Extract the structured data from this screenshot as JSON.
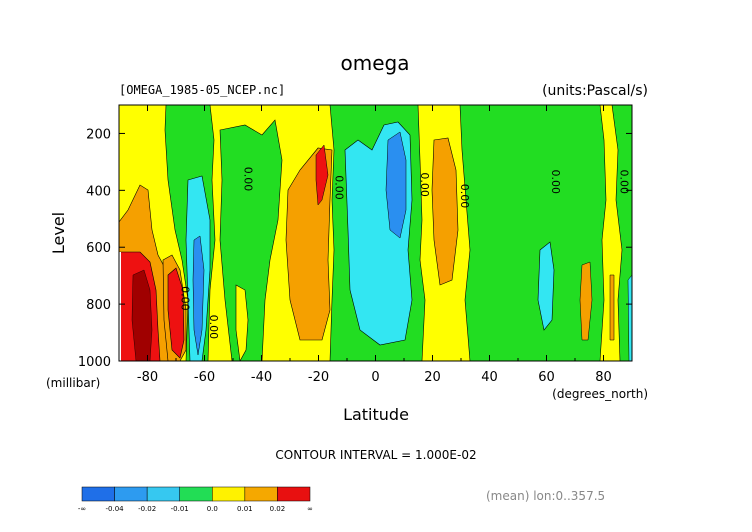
{
  "chart_data": {
    "type": "heatmap",
    "title": "omega",
    "file_label": "[OMEGA_1985-05_NCEP.nc]",
    "units_label": "(units:Pascal/s)",
    "xlabel": "Latitude",
    "x_units": "(degrees_north)",
    "ylabel": "Level",
    "y_units": "(millibar)",
    "xlim": [
      -90,
      90
    ],
    "ylim": [
      1000,
      100
    ],
    "x_ticks": [
      -80,
      -60,
      -40,
      -20,
      0,
      20,
      40,
      60,
      80
    ],
    "x_tick_labels": [
      "-80",
      "-60",
      "-40",
      "-20",
      "0",
      "20",
      "40",
      "60",
      "80"
    ],
    "y_ticks": [
      200,
      400,
      600,
      800,
      1000
    ],
    "y_tick_labels": [
      "200",
      "400",
      "600",
      "800",
      "1000"
    ],
    "contour_interval_text": "CONTOUR INTERVAL = 1.000E-02",
    "mean_text": "(mean) lon:0..357.5",
    "contour_labels": [
      {
        "text": "0.00",
        "lat": -68,
        "lev": 780
      },
      {
        "text": "0.00",
        "lat": -58,
        "lev": 880
      },
      {
        "text": "0.00",
        "lat": -46,
        "lev": 360
      },
      {
        "text": "0.00",
        "lat": -14,
        "lev": 390
      },
      {
        "text": "0.00",
        "lat": 16,
        "lev": 380
      },
      {
        "text": "0.00",
        "lat": 30,
        "lev": 420
      },
      {
        "text": "0.00",
        "lat": 62,
        "lev": 370
      },
      {
        "text": "0.00",
        "lat": 86,
        "lev": 370
      }
    ],
    "colorbar": {
      "colors": [
        "#1f6fe8",
        "#2d9bf0",
        "#36c8f0",
        "#22dd55",
        "#fff200",
        "#f5a800",
        "#e81010"
      ],
      "tick_labels": [
        "-∞",
        "-0.04",
        "-0.02",
        "-0.01",
        "0.0",
        "0.01",
        "0.02",
        "∞"
      ]
    },
    "colors": {
      "red": "#ee1111",
      "orange": "#f5a000",
      "yellow": "#ffff00",
      "green": "#22dd22",
      "cyan": "#33e6f2",
      "blue": "#2a8ff0",
      "darkred": "#a00000"
    }
  }
}
